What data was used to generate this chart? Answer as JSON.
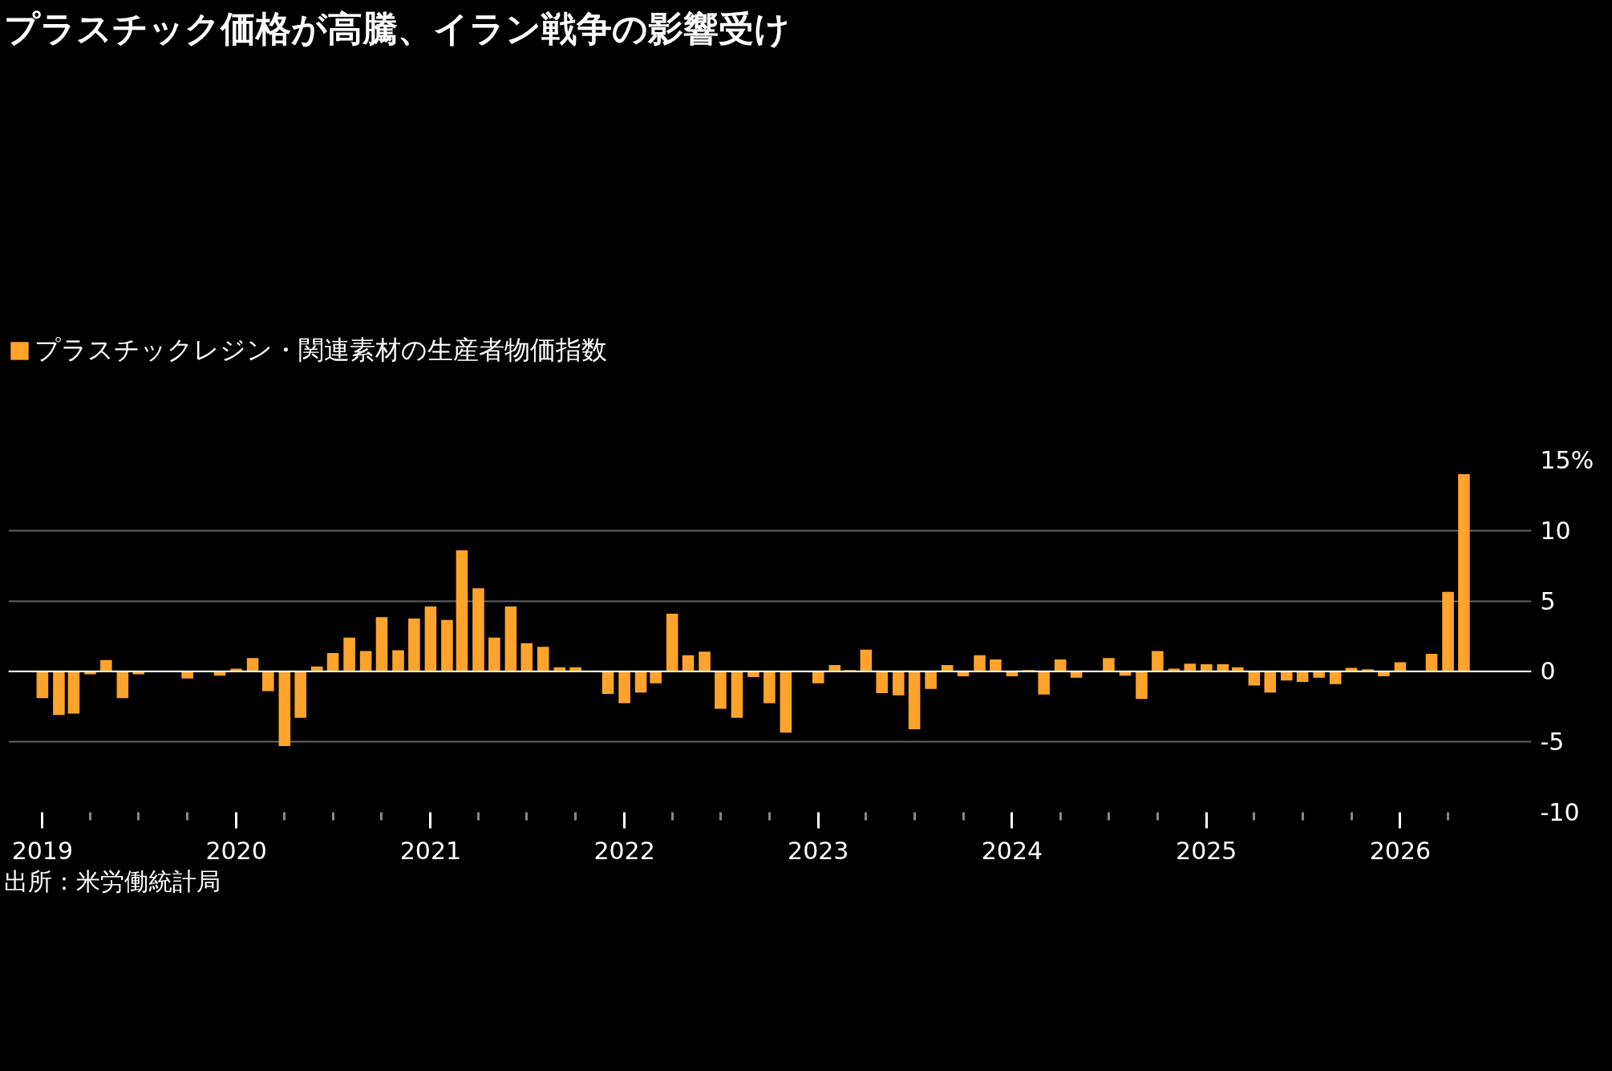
{
  "chart_data": {
    "type": "bar",
    "title": "プラスチック価格が高騰、イラン戦争の影響受け",
    "annotations": [
      "出所：米労働統計局"
    ],
    "legend": "top left",
    "x": [
      "2019-01",
      "2019-02",
      "2019-03",
      "2019-04",
      "2019-05",
      "2019-06",
      "2019-07",
      "2019-08",
      "2019-09",
      "2019-10",
      "2019-11",
      "2019-12",
      "2020-01",
      "2020-02",
      "2020-03",
      "2020-04",
      "2020-05",
      "2020-06",
      "2020-07",
      "2020-08",
      "2020-09",
      "2020-10",
      "2020-11",
      "2020-12",
      "2021-01",
      "2021-02",
      "2021-03",
      "2021-04",
      "2021-05",
      "2021-06",
      "2021-07",
      "2021-08",
      "2021-09",
      "2021-10",
      "2021-11",
      "2021-12",
      "2022-01",
      "2022-02",
      "2022-03",
      "2022-04",
      "2022-05",
      "2022-06",
      "2022-07",
      "2022-08",
      "2022-09",
      "2022-10",
      "2022-11",
      "2022-12",
      "2023-01",
      "2023-02",
      "2023-03",
      "2023-04",
      "2023-05",
      "2023-06",
      "2023-07",
      "2023-08",
      "2023-09",
      "2023-10",
      "2023-11",
      "2023-12",
      "2024-01",
      "2024-02",
      "2024-03",
      "2024-04",
      "2024-05",
      "2024-06",
      "2024-07",
      "2024-08",
      "2024-09",
      "2024-10",
      "2024-11",
      "2024-12",
      "2025-01",
      "2025-02",
      "2025-03",
      "2025-04",
      "2025-05",
      "2025-06",
      "2025-07",
      "2025-08",
      "2025-09",
      "2025-10",
      "2025-11",
      "2025-12",
      "2026-01",
      "2026-02",
      "2026-03",
      "2026-04",
      "2026-05"
    ],
    "series": [
      {
        "name": "プラスチックレジン・関連素材の生産者物価指数",
        "color": "#ffa32b",
        "values": [
          -1.9,
          -3.1,
          -3.0,
          -0.2,
          0.8,
          -1.9,
          -0.2,
          0,
          null,
          -0.5,
          0,
          -0.3,
          0.2,
          0.95,
          -1.4,
          -5.3,
          -3.3,
          0.35,
          1.3,
          2.4,
          1.45,
          3.85,
          1.5,
          3.75,
          4.6,
          3.65,
          8.6,
          5.9,
          2.4,
          4.6,
          2.0,
          1.75,
          0.3,
          0.3,
          null,
          -1.6,
          -2.25,
          -1.5,
          -0.85,
          4.1,
          1.15,
          1.4,
          -2.65,
          -3.3,
          -0.4,
          -2.25,
          -4.35,
          null,
          -0.85,
          0.45,
          0.1,
          1.55,
          -1.55,
          -1.7,
          -4.1,
          -1.25,
          0.45,
          -0.35,
          1.15,
          0.85,
          -0.35,
          0.1,
          -1.65,
          0.85,
          -0.45,
          null,
          0.95,
          -0.3,
          -1.95,
          1.45,
          0.2,
          0.55,
          0.5,
          0.5,
          0.3,
          -1.0,
          -1.5,
          -0.65,
          -0.75,
          -0.45,
          -0.9,
          0.25,
          0.15,
          -0.35,
          0.65,
          null,
          1.25,
          5.65,
          14.0
        ]
      }
    ],
    "ylim": [
      -10,
      15
    ],
    "yticks": [
      -10,
      -5,
      0,
      5,
      10,
      {
        "value": 15,
        "label": "15%"
      }
    ],
    "xlim": [
      "2018-10-29",
      "2026-09-05"
    ],
    "xticks": [
      {
        "value": "2019-01",
        "label": "2019"
      },
      {
        "value": "2019-04",
        "label": null
      },
      {
        "value": "2019-07",
        "label": null
      },
      {
        "value": "2019-10",
        "label": null
      },
      {
        "value": "2020-01",
        "label": "2020"
      },
      {
        "value": "2020-04",
        "label": null
      },
      {
        "value": "2020-07",
        "label": null
      },
      {
        "value": "2020-10",
        "label": null
      },
      {
        "value": "2021-01",
        "label": "2021"
      },
      {
        "value": "2021-04",
        "label": null
      },
      {
        "value": "2021-07",
        "label": null
      },
      {
        "value": "2021-10",
        "label": null
      },
      {
        "value": "2022-01",
        "label": "2022"
      },
      {
        "value": "2022-04",
        "label": null
      },
      {
        "value": "2022-07",
        "label": null
      },
      {
        "value": "2022-10",
        "label": null
      },
      {
        "value": "2023-01",
        "label": "2023"
      },
      {
        "value": "2023-04",
        "label": null
      },
      {
        "value": "2023-07",
        "label": null
      },
      {
        "value": "2023-10",
        "label": null
      },
      {
        "value": "2024-01",
        "label": "2024"
      },
      {
        "value": "2024-04",
        "label": null
      },
      {
        "value": "2024-07",
        "label": null
      },
      {
        "value": "2024-10",
        "label": null
      },
      {
        "value": "2025-01",
        "label": "2025"
      },
      {
        "value": "2025-04",
        "label": null
      },
      {
        "value": "2025-07",
        "label": null
      },
      {
        "value": "2025-10",
        "label": null
      },
      {
        "value": "2026-01",
        "label": "2026"
      },
      {
        "value": "2026-04",
        "label": null
      }
    ],
    "ref_lines": [
      {
        "axis": "y",
        "value": 0,
        "color": "#ffffff"
      }
    ],
    "grid": "y"
  }
}
